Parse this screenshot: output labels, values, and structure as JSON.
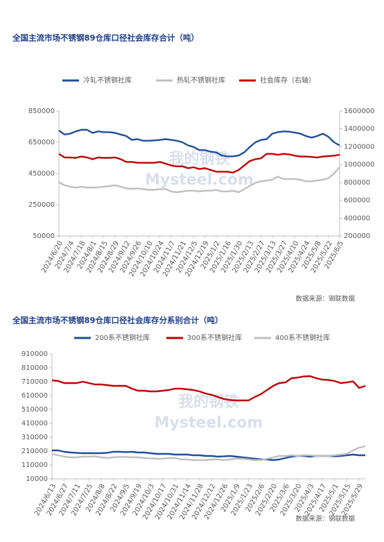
{
  "chart_data": [
    {
      "type": "line",
      "title": "全国主流市场不锈钢89仓库口径社会库存合计（吨）",
      "source": "数据来源：钢联数据",
      "watermark": [
        "我的钢铁",
        "Mysteel.com"
      ],
      "categories": [
        "2024/6/20",
        null,
        "2024/7/4",
        null,
        "2024/7/18",
        null,
        "2024/8/1",
        null,
        "2024/8/15",
        null,
        "2024/8/29",
        null,
        "2024/9/12",
        null,
        "2024/9/26",
        null,
        "2024/10/10",
        null,
        "2024/10/24",
        null,
        "2024/11/7",
        null,
        "2024/11/21",
        null,
        "2024/12/5",
        null,
        "2024/12/19",
        null,
        "2025/1/2",
        null,
        "2025/1/16",
        null,
        "2025/1/30",
        null,
        "2025/2/13",
        null,
        "2025/2/27",
        null,
        "2025/3/13",
        null,
        "2025/3/27",
        null,
        "2025/4/10",
        null,
        "2025/4/24",
        null,
        "2025/5/8",
        null,
        "2025/5/22",
        null,
        "2025/6/5"
      ],
      "series": [
        {
          "name": "冷轧不锈钢社库",
          "color": "#1f4e9c",
          "values": [
            725000,
            700000,
            705000,
            720000,
            730000,
            730000,
            710000,
            720000,
            715000,
            715000,
            710000,
            700000,
            690000,
            665000,
            670000,
            660000,
            660000,
            662000,
            665000,
            670000,
            665000,
            660000,
            650000,
            630000,
            620000,
            600000,
            600000,
            590000,
            585000,
            565000,
            560000,
            560000,
            565000,
            585000,
            620000,
            650000,
            665000,
            670000,
            705000,
            715000,
            720000,
            718000,
            712000,
            705000,
            690000,
            680000,
            690000,
            705000,
            685000,
            650000,
            630000
          ]
        },
        {
          "name": "热轧不锈钢社库",
          "color": "#bfbfbf",
          "values": [
            395000,
            375000,
            365000,
            360000,
            365000,
            360000,
            360000,
            362000,
            365000,
            370000,
            375000,
            365000,
            355000,
            352000,
            355000,
            350000,
            345000,
            345000,
            350000,
            350000,
            335000,
            330000,
            335000,
            340000,
            340000,
            335000,
            340000,
            340000,
            345000,
            335000,
            335000,
            340000,
            330000,
            350000,
            370000,
            390000,
            400000,
            405000,
            410000,
            430000,
            415000,
            415000,
            415000,
            410000,
            400000,
            400000,
            405000,
            410000,
            420000,
            450000,
            490000
          ]
        },
        {
          "name": "社会库存（右轴）",
          "color": "#c00000",
          "axis": "y2",
          "values": [
            1120000,
            1080000,
            1080000,
            1075000,
            1090000,
            1080000,
            1060000,
            1080000,
            1075000,
            1075000,
            1080000,
            1060000,
            1030000,
            1030000,
            1020000,
            1020000,
            1020000,
            1020000,
            1030000,
            1010000,
            990000,
            980000,
            980000,
            960000,
            970000,
            950000,
            960000,
            940000,
            920000,
            920000,
            920000,
            910000,
            940000,
            990000,
            1040000,
            1060000,
            1070000,
            1120000,
            1120000,
            1110000,
            1120000,
            1115000,
            1100000,
            1090000,
            1090000,
            1085000,
            1080000,
            1090000,
            1095000,
            1100000,
            1110000
          ]
        }
      ],
      "ylim": [
        50000,
        850000
      ],
      "yticks": [
        50000,
        250000,
        450000,
        650000,
        850000
      ],
      "y2lim": [
        200000,
        1600000
      ],
      "y2ticks": [
        200000,
        400000,
        600000,
        800000,
        1000000,
        1200000,
        1400000,
        1600000
      ]
    },
    {
      "type": "line",
      "title": "全国主流市场不锈钢89仓库口径社会库存分系别合计（吨）",
      "source": "数据来源：钢联数据",
      "watermark": [
        "我的钢铁",
        "Mysteel.com"
      ],
      "categories": [
        "2024/6/13",
        null,
        "2024/6/27",
        null,
        "2024/7/11",
        null,
        "2024/7/25",
        null,
        "2024/8/8",
        null,
        "2024/8/22",
        null,
        "2024/9/5",
        null,
        "2024/9/19",
        null,
        "2024/10/3",
        null,
        "2024/10/17",
        null,
        "2024/10/31",
        null,
        "2024/11/14",
        null,
        "2024/11/28",
        null,
        "2024/12/12",
        null,
        "2024/12/26",
        null,
        "2025/1/9",
        null,
        "2025/1/23",
        null,
        "2025/2/6",
        null,
        "2025/2/20",
        null,
        "2025/3/6",
        null,
        "2025/3/20",
        null,
        "2025/4/3",
        null,
        "2025/4/17",
        null,
        "2025/5/1",
        null,
        "2025/5/15",
        null,
        "2025/5/29",
        null
      ],
      "series": [
        {
          "name": "200系不锈钢社库",
          "color": "#1f4e9c",
          "values": [
            215000,
            215000,
            205000,
            200000,
            197000,
            195000,
            195000,
            195000,
            195000,
            198000,
            205000,
            205000,
            203000,
            205000,
            200000,
            200000,
            195000,
            190000,
            190000,
            190000,
            185000,
            185000,
            185000,
            180000,
            180000,
            175000,
            175000,
            170000,
            172000,
            175000,
            170000,
            165000,
            160000,
            155000,
            150000,
            150000,
            145000,
            150000,
            160000,
            170000,
            175000,
            175000,
            170000,
            175000,
            175000,
            175000,
            172000,
            175000,
            180000,
            185000,
            180000,
            180000
          ]
        },
        {
          "name": "300系不锈钢社库",
          "color": "#c00000",
          "values": [
            720000,
            715000,
            700000,
            700000,
            700000,
            710000,
            700000,
            690000,
            690000,
            685000,
            680000,
            680000,
            680000,
            660000,
            645000,
            645000,
            640000,
            640000,
            645000,
            650000,
            660000,
            660000,
            655000,
            650000,
            640000,
            625000,
            615000,
            600000,
            585000,
            578000,
            575000,
            575000,
            575000,
            600000,
            620000,
            650000,
            680000,
            700000,
            705000,
            735000,
            740000,
            748000,
            750000,
            735000,
            725000,
            722000,
            715000,
            700000,
            705000,
            712000,
            665000,
            680000
          ]
        },
        {
          "name": "400系不锈钢社库",
          "color": "#bfbfbf",
          "values": [
            190000,
            180000,
            170000,
            165000,
            165000,
            170000,
            170000,
            172000,
            165000,
            160000,
            165000,
            168000,
            168000,
            165000,
            165000,
            160000,
            158000,
            155000,
            155000,
            160000,
            160000,
            150000,
            150000,
            145000,
            145000,
            145000,
            150000,
            150000,
            145000,
            150000,
            155000,
            155000,
            150000,
            145000,
            145000,
            155000,
            165000,
            175000,
            175000,
            180000,
            175000,
            180000,
            180000,
            175000,
            175000,
            175000,
            180000,
            185000,
            190000,
            215000,
            235000,
            245000
          ]
        }
      ],
      "ylim": [
        10000,
        910000
      ],
      "yticks": [
        10000,
        110000,
        210000,
        310000,
        410000,
        510000,
        610000,
        710000,
        810000,
        910000
      ]
    }
  ]
}
